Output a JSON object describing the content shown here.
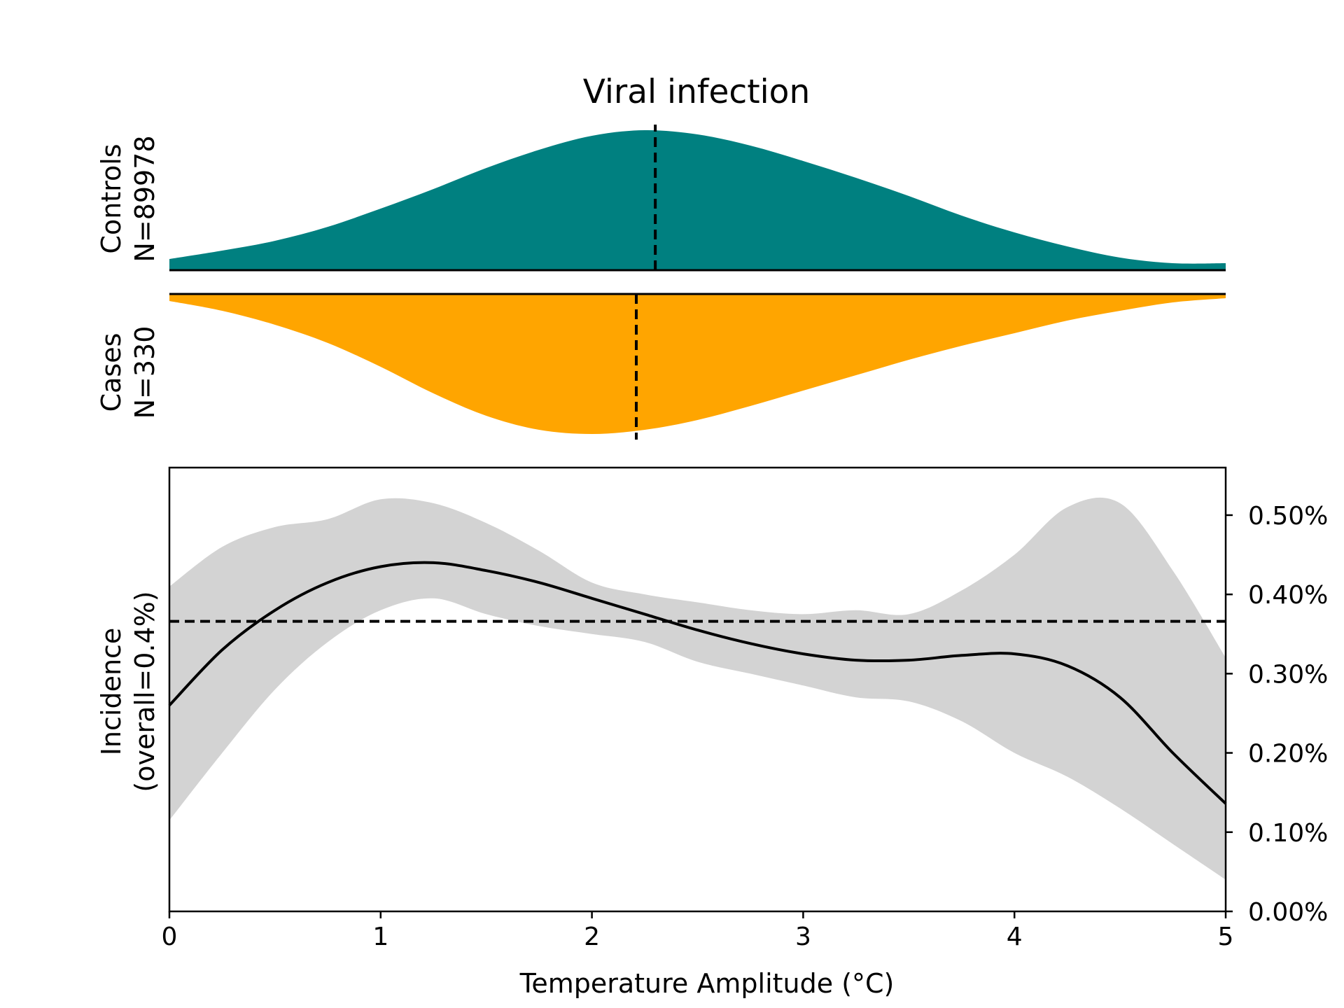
{
  "chart_data": [
    {
      "type": "area",
      "title": "Viral infection",
      "ylabel_line1": "Controls",
      "ylabel_line2": "N=89978",
      "color": "#008080",
      "xlim": [
        0,
        5
      ],
      "ylim": [
        0,
        1
      ],
      "median": 2.3,
      "x": [
        0,
        0.25,
        0.5,
        0.75,
        1,
        1.25,
        1.5,
        1.75,
        2,
        2.25,
        2.5,
        2.75,
        3,
        3.25,
        3.5,
        3.75,
        4,
        4.25,
        4.5,
        4.75,
        5
      ],
      "y": [
        0.08,
        0.14,
        0.21,
        0.31,
        0.44,
        0.58,
        0.73,
        0.86,
        0.96,
        1.0,
        0.97,
        0.89,
        0.78,
        0.66,
        0.53,
        0.39,
        0.27,
        0.17,
        0.09,
        0.05,
        0.05
      ]
    },
    {
      "type": "area",
      "ylabel_line1": "Cases",
      "ylabel_line2": "N=330",
      "color": "#ffa500",
      "xlim": [
        0,
        5
      ],
      "ylim": [
        0,
        1
      ],
      "median": 2.21,
      "x": [
        0,
        0.25,
        0.5,
        0.75,
        1,
        1.25,
        1.5,
        1.75,
        2,
        2.25,
        2.5,
        2.75,
        3,
        3.25,
        3.5,
        3.75,
        4,
        4.25,
        4.5,
        4.75,
        5
      ],
      "y": [
        0.05,
        0.12,
        0.22,
        0.35,
        0.52,
        0.71,
        0.87,
        0.97,
        1.0,
        0.97,
        0.9,
        0.8,
        0.69,
        0.58,
        0.47,
        0.37,
        0.28,
        0.19,
        0.12,
        0.06,
        0.03
      ]
    },
    {
      "type": "line",
      "xlabel": "Temperature Amplitude (°C)",
      "ylabel_line1": "Incidence",
      "ylabel_line2": "(overall=0.4%)",
      "xlim": [
        0,
        5
      ],
      "ylim": [
        0,
        0.56
      ],
      "x_ticks": [
        0,
        1,
        2,
        3,
        4,
        5
      ],
      "x_tick_labels": [
        "0",
        "1",
        "2",
        "3",
        "4",
        "5"
      ],
      "y_ticks": [
        0,
        0.1,
        0.2,
        0.3,
        0.4,
        0.5
      ],
      "y_tick_labels": [
        "0.00%",
        "0.10%",
        "0.20%",
        "0.30%",
        "0.40%",
        "0.50%"
      ],
      "y_axis_side": "right",
      "overall_rate": 0.366,
      "series": [
        {
          "color": "#000000",
          "x": [
            0,
            0.25,
            0.5,
            0.75,
            1,
            1.25,
            1.5,
            1.75,
            2,
            2.25,
            2.5,
            2.75,
            3,
            3.25,
            3.5,
            3.75,
            4,
            4.25,
            4.5,
            4.75,
            5
          ],
          "values": [
            0.26,
            0.33,
            0.38,
            0.415,
            0.435,
            0.44,
            0.43,
            0.415,
            0.395,
            0.375,
            0.355,
            0.338,
            0.325,
            0.317,
            0.317,
            0.323,
            0.325,
            0.31,
            0.27,
            0.2,
            0.136
          ]
        }
      ],
      "band": {
        "color": "#d3d3d3",
        "x": [
          0,
          0.25,
          0.5,
          0.75,
          1,
          1.25,
          1.5,
          1.75,
          2,
          2.25,
          2.5,
          2.75,
          3,
          3.25,
          3.5,
          3.75,
          4,
          4.25,
          4.5,
          4.75,
          5
        ],
        "lower": [
          0.115,
          0.2,
          0.28,
          0.34,
          0.38,
          0.395,
          0.375,
          0.36,
          0.35,
          0.34,
          0.315,
          0.3,
          0.285,
          0.27,
          0.265,
          0.24,
          0.2,
          0.17,
          0.13,
          0.085,
          0.04
        ],
        "upper": [
          0.41,
          0.46,
          0.485,
          0.495,
          0.52,
          0.515,
          0.49,
          0.455,
          0.415,
          0.4,
          0.39,
          0.38,
          0.375,
          0.38,
          0.375,
          0.405,
          0.45,
          0.51,
          0.515,
          0.43,
          0.32
        ]
      }
    }
  ]
}
